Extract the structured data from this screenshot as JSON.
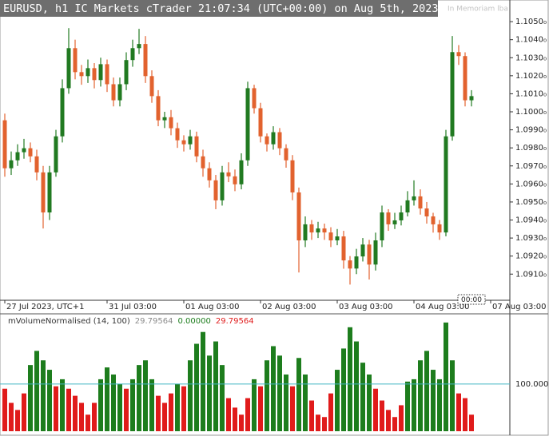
{
  "chart_data": [
    {
      "type": "candlestick",
      "title": "EURUSD, h1 IC Markets cTrader 21:07:34 (UTC+00:00) on Aug 5th, 2023",
      "watermark": "In Memoriam lba",
      "cursor_label": "00:00",
      "up_color": "#217a21",
      "down_color": "#e2622e",
      "candles": [
        [
          1.09953,
          1.0999,
          1.0964,
          1.09687
        ],
        [
          1.09687,
          1.0978,
          1.0965,
          1.09731
        ],
        [
          1.09731,
          1.0982,
          1.097,
          1.09776
        ],
        [
          1.09776,
          1.0985,
          1.0974,
          1.09798
        ],
        [
          1.09798,
          1.0983,
          1.0972,
          1.09753
        ],
        [
          1.09753,
          1.0979,
          1.0962,
          1.09664
        ],
        [
          1.09664,
          1.097,
          1.09353,
          1.09442
        ],
        [
          1.09442,
          1.097,
          1.094,
          1.09664
        ],
        [
          1.09664,
          1.099,
          1.0964,
          1.09864
        ],
        [
          1.09864,
          1.1018,
          1.0983,
          1.10131
        ],
        [
          1.10131,
          1.10464,
          1.101,
          1.10353
        ],
        [
          1.10353,
          1.104,
          1.1018,
          1.1022
        ],
        [
          1.1022,
          1.1026,
          1.1015,
          1.10198
        ],
        [
          1.10198,
          1.1029,
          1.1016,
          1.10242
        ],
        [
          1.10242,
          1.1027,
          1.1013,
          1.10176
        ],
        [
          1.10176,
          1.103,
          1.1014,
          1.10264
        ],
        [
          1.10264,
          1.1029,
          1.1011,
          1.10153
        ],
        [
          1.10153,
          1.1019,
          1.1003,
          1.10064
        ],
        [
          1.10064,
          1.1019,
          1.1003,
          1.10153
        ],
        [
          1.10153,
          1.1033,
          1.1012,
          1.10287
        ],
        [
          1.10287,
          1.104,
          1.1025,
          1.10353
        ],
        [
          1.10353,
          1.1046,
          1.1032,
          1.10376
        ],
        [
          1.10376,
          1.1042,
          1.1016,
          1.10198
        ],
        [
          1.10198,
          1.1023,
          1.1005,
          1.10087
        ],
        [
          1.10087,
          1.1012,
          1.0992,
          1.09953
        ],
        [
          1.09953,
          1.1,
          1.0991,
          1.0997
        ],
        [
          1.0997,
          1.1001,
          1.0987,
          1.09909
        ],
        [
          1.09909,
          1.0994,
          1.098,
          1.09842
        ],
        [
          1.09842,
          1.0987,
          1.0978,
          1.0982
        ],
        [
          1.0982,
          1.099,
          1.0979,
          1.09864
        ],
        [
          1.09864,
          1.0989,
          1.0972,
          1.09753
        ],
        [
          1.09753,
          1.0979,
          1.0964,
          1.09687
        ],
        [
          1.09687,
          1.0972,
          1.0958,
          1.0962
        ],
        [
          1.0962,
          1.0965,
          1.0946,
          1.09509
        ],
        [
          1.09509,
          1.097,
          1.0948,
          1.09664
        ],
        [
          1.09664,
          1.0972,
          1.0961,
          1.09642
        ],
        [
          1.09642,
          1.0968,
          1.0956,
          1.09598
        ],
        [
          1.09598,
          1.0977,
          1.0957,
          1.09731
        ],
        [
          1.09731,
          1.10167,
          1.097,
          1.10131
        ],
        [
          1.10131,
          1.1015,
          1.0999,
          1.1002
        ],
        [
          1.1002,
          1.1005,
          1.0983,
          1.09864
        ],
        [
          1.09864,
          1.0988,
          1.0978,
          1.0982
        ],
        [
          1.0982,
          1.0992,
          1.0979,
          1.09887
        ],
        [
          1.09887,
          1.0991,
          1.0976,
          1.09798
        ],
        [
          1.09798,
          1.0982,
          1.0969,
          1.09731
        ],
        [
          1.09731,
          1.0976,
          1.0951,
          1.09553
        ],
        [
          1.09553,
          1.0958,
          1.09109,
          1.09287
        ],
        [
          1.09287,
          1.0942,
          1.0925,
          1.09376
        ],
        [
          1.09376,
          1.094,
          1.0929,
          1.09331
        ],
        [
          1.09331,
          1.0939,
          1.093,
          1.09353
        ],
        [
          1.09353,
          1.0938,
          1.0929,
          1.09331
        ],
        [
          1.09331,
          1.0936,
          1.0925,
          1.09287
        ],
        [
          1.09287,
          1.0935,
          1.0926,
          1.09309
        ],
        [
          1.09309,
          1.0934,
          1.0913,
          1.09176
        ],
        [
          1.09176,
          1.092,
          1.09042,
          1.09131
        ],
        [
          1.09131,
          1.0924,
          1.091,
          1.09198
        ],
        [
          1.09198,
          1.093,
          1.0917,
          1.09264
        ],
        [
          1.09264,
          1.0929,
          1.0907,
          1.09153
        ],
        [
          1.09153,
          1.0933,
          1.0912,
          1.09287
        ],
        [
          1.09287,
          1.0948,
          1.0925,
          1.09442
        ],
        [
          1.09442,
          1.0946,
          1.0934,
          1.09376
        ],
        [
          1.09376,
          1.0944,
          1.0935,
          1.09398
        ],
        [
          1.09398,
          1.0948,
          1.0937,
          1.09442
        ],
        [
          1.09442,
          1.0956,
          1.0942,
          1.09509
        ],
        [
          1.09509,
          1.0962,
          1.0948,
          1.09531
        ],
        [
          1.09531,
          1.0957,
          1.0943,
          1.09464
        ],
        [
          1.09464,
          1.095,
          1.0938,
          1.0942
        ],
        [
          1.0942,
          1.0944,
          1.0933,
          1.09376
        ],
        [
          1.09376,
          1.094,
          1.0929,
          1.09331
        ],
        [
          1.09331,
          1.099,
          1.0931,
          1.09864
        ],
        [
          1.09864,
          1.1042,
          1.0984,
          1.10331
        ],
        [
          1.10331,
          1.1037,
          1.1026,
          1.10309
        ],
        [
          1.10309,
          1.1033,
          1.1003,
          1.10064
        ],
        [
          1.10064,
          1.1012,
          1.1003,
          1.10087
        ]
      ],
      "xlim": [
        -0.75,
        79
      ],
      "xticks": [
        {
          "value": 0,
          "label": "27 Jul 2023, UTC+1"
        },
        {
          "value": 16,
          "label": "31 Jul 03:00"
        },
        {
          "value": 28,
          "label": "01 Aug 03:00"
        },
        {
          "value": 40,
          "label": "02 Aug 03:00"
        },
        {
          "value": 52,
          "label": "03 Aug 03:00"
        },
        {
          "value": 64,
          "label": "04 Aug 03:00"
        },
        {
          "value": 76,
          "label": "07 Aug 03:00"
        }
      ],
      "ylim": [
        1.08955,
        1.1062
      ],
      "yticks": [
        {
          "value": 1.091,
          "label": "1.0910₀"
        },
        {
          "value": 1.092,
          "label": "1.0920₀"
        },
        {
          "value": 1.093,
          "label": "1.0930₀"
        },
        {
          "value": 1.094,
          "label": "1.0940₀"
        },
        {
          "value": 1.095,
          "label": "1.0950₀"
        },
        {
          "value": 1.096,
          "label": "1.0960₀"
        },
        {
          "value": 1.097,
          "label": "1.0970₀"
        },
        {
          "value": 1.098,
          "label": "1.0980₀"
        },
        {
          "value": 1.099,
          "label": "1.0990₀"
        },
        {
          "value": 1.1,
          "label": "1.1000₀"
        },
        {
          "value": 1.101,
          "label": "1.1010₀"
        },
        {
          "value": 1.102,
          "label": "1.1020₀"
        },
        {
          "value": 1.103,
          "label": "1.1030₀"
        },
        {
          "value": 1.104,
          "label": "1.1040₀"
        },
        {
          "value": 1.105,
          "label": "1.1050₀"
        }
      ]
    },
    {
      "type": "bar",
      "title": "mVolumeNormalised (14, 100)",
      "readout": [
        {
          "value": 29.79564,
          "label": "29.79564",
          "color": "#8a8a8a"
        },
        {
          "value": 0,
          "label": "0.00000",
          "color": "#1d7d1d"
        },
        {
          "value": 29.79564,
          "label": "29.79564",
          "color": "#e01b1b"
        }
      ],
      "up_color": "#1d7d1d",
      "down_color": "#e01b1b",
      "level_color": "#46b6c4",
      "values": [
        90,
        60,
        45,
        80,
        140,
        170,
        150,
        130,
        95,
        110,
        90,
        75,
        60,
        35,
        60,
        110,
        135,
        120,
        100,
        90,
        110,
        140,
        150,
        110,
        75,
        60,
        80,
        100,
        95,
        150,
        185,
        210,
        160,
        190,
        140,
        70,
        50,
        35,
        70,
        110,
        95,
        150,
        180,
        160,
        120,
        95,
        155,
        120,
        65,
        35,
        30,
        80,
        130,
        175,
        220,
        190,
        145,
        120,
        90,
        65,
        45,
        30,
        55,
        105,
        110,
        150,
        170,
        130,
        110,
        230,
        150,
        80,
        70,
        35
      ],
      "ylim": [
        0,
        245
      ],
      "yticks": [
        {
          "value": 100,
          "label": "100.0000"
        }
      ]
    }
  ]
}
